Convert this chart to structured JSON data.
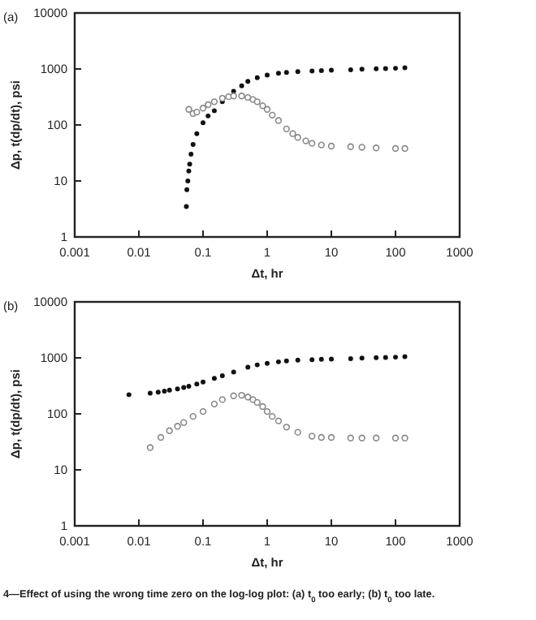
{
  "chart_data": [
    {
      "type": "scatter",
      "title": "(a)",
      "xlabel": "Δt, hr",
      "ylabel": "Δp, t(dp/dt), psi",
      "log": "xy",
      "marker": "circle",
      "xlim": [
        0.001,
        1000
      ],
      "xticks": [
        0.001,
        0.01,
        0.1,
        1,
        10,
        100,
        1000
      ],
      "ylim": [
        1,
        10000
      ],
      "yticks": [
        1,
        10,
        100,
        1000,
        10000
      ],
      "series": [
        {
          "color": "#111111",
          "x": [
            0.055,
            0.056,
            0.058,
            0.06,
            0.062,
            0.065,
            0.07,
            0.08,
            0.1,
            0.12,
            0.15,
            0.2,
            0.3,
            0.4,
            0.5,
            0.7,
            1,
            1.5,
            2,
            3,
            5,
            7,
            10,
            20,
            30,
            50,
            70,
            100,
            140
          ],
          "values": [
            3.5,
            7,
            10,
            15,
            20,
            30,
            45,
            70,
            110,
            145,
            180,
            260,
            400,
            500,
            600,
            700,
            780,
            840,
            870,
            900,
            920,
            935,
            950,
            970,
            990,
            1005,
            1015,
            1030,
            1050
          ]
        },
        {
          "color": "#888888",
          "x": [
            0.06,
            0.07,
            0.08,
            0.1,
            0.12,
            0.15,
            0.2,
            0.25,
            0.3,
            0.4,
            0.5,
            0.6,
            0.7,
            0.85,
            1,
            1.2,
            1.5,
            2,
            2.5,
            3,
            4,
            5,
            7,
            10,
            20,
            30,
            50,
            100,
            140
          ],
          "values": [
            190,
            160,
            170,
            200,
            230,
            260,
            300,
            320,
            330,
            330,
            310,
            285,
            260,
            220,
            190,
            150,
            120,
            85,
            70,
            60,
            52,
            47,
            44,
            42,
            41,
            40,
            39,
            38,
            38
          ]
        }
      ]
    },
    {
      "type": "scatter",
      "title": "(b)",
      "xlabel": "Δt, hr",
      "ylabel": "Δp, t(dp/dt), psi",
      "log": "xy",
      "marker": "circle",
      "xlim": [
        0.001,
        1000
      ],
      "xticks": [
        0.001,
        0.01,
        0.1,
        1,
        10,
        100,
        1000
      ],
      "ylim": [
        1,
        10000
      ],
      "yticks": [
        1,
        10,
        100,
        1000,
        10000
      ],
      "annotations": [
        "4—Effect of using the wrong time zero on the log-log plot: (a) t$_{0}$ too early; (b) t$_{0}$ too late."
      ],
      "series": [
        {
          "color": "#111111",
          "x": [
            0.007,
            0.015,
            0.02,
            0.025,
            0.03,
            0.04,
            0.05,
            0.06,
            0.08,
            0.1,
            0.15,
            0.2,
            0.3,
            0.5,
            0.7,
            1,
            1.5,
            2,
            3,
            5,
            7,
            10,
            20,
            30,
            50,
            70,
            100,
            140
          ],
          "values": [
            220,
            235,
            245,
            255,
            265,
            280,
            295,
            310,
            340,
            370,
            430,
            480,
            560,
            680,
            750,
            800,
            850,
            880,
            910,
            930,
            940,
            950,
            970,
            990,
            1005,
            1015,
            1030,
            1050
          ]
        },
        {
          "color": "#888888",
          "x": [
            0.015,
            0.022,
            0.03,
            0.04,
            0.05,
            0.07,
            0.1,
            0.15,
            0.2,
            0.3,
            0.4,
            0.5,
            0.6,
            0.7,
            0.85,
            1,
            1.2,
            1.5,
            2,
            3,
            5,
            7,
            10,
            20,
            30,
            50,
            100,
            140
          ],
          "values": [
            25,
            38,
            50,
            60,
            70,
            90,
            110,
            150,
            180,
            210,
            215,
            200,
            180,
            160,
            135,
            110,
            90,
            75,
            58,
            47,
            40,
            38,
            38,
            37,
            37,
            37,
            37,
            37
          ]
        }
      ]
    }
  ]
}
